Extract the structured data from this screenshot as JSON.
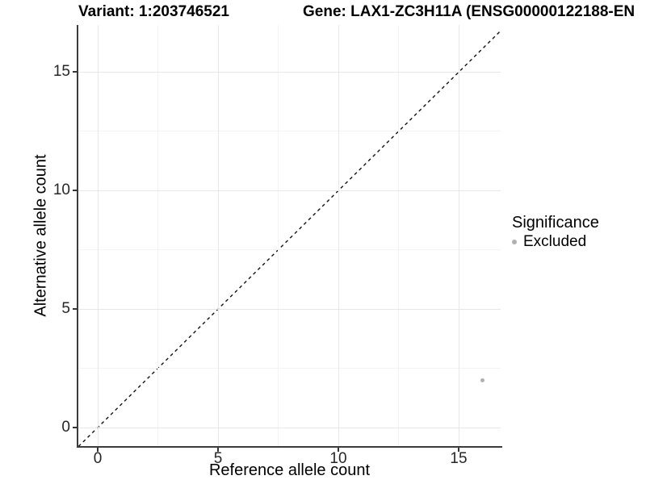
{
  "chart_data": {
    "type": "scatter",
    "title_left": "Variant: 1:203746521",
    "title_right": "Gene: LAX1-ZC3H11A (ENSG00000122188-EN",
    "xlabel": "Reference allele count",
    "ylabel": "Alternative allele count",
    "x_ticks": [
      0,
      5,
      10,
      15
    ],
    "y_ticks": [
      0,
      5,
      10,
      15
    ],
    "minor_x": [
      2.5,
      7.5,
      12.5
    ],
    "minor_y": [
      2.5,
      7.5,
      12.5
    ],
    "xlim": [
      -0.8,
      16.75
    ],
    "ylim": [
      -0.8,
      16.95
    ],
    "grid": "major+minor",
    "reference_line": {
      "equation": "y = x",
      "style": "dashed",
      "color": "#111111"
    },
    "series": [
      {
        "name": "Excluded",
        "color": "#b0b0b0",
        "points": [
          {
            "x": 16,
            "y": 2
          }
        ]
      }
    ],
    "legend": {
      "title": "Significance",
      "position": "right",
      "items": [
        {
          "label": "Excluded",
          "color": "#b0b0b0",
          "marker": "circle"
        }
      ]
    }
  }
}
